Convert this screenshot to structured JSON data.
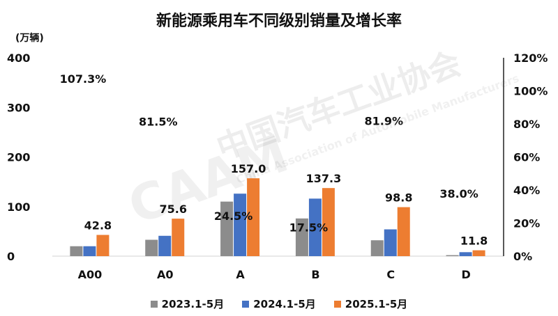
{
  "title": "新能源乘用车不同级别销量及增长率",
  "unit": "(万辆)",
  "watermark": {
    "cn": "中国汽车工业协会",
    "en": "China Association of Automobile Manufacturers",
    "logo": "CAAM"
  },
  "colors": {
    "s2023": "#8c8c8c",
    "s2024": "#4472c4",
    "s2025": "#ed7d31"
  },
  "chart_data": {
    "type": "bar",
    "title": "新能源乘用车不同级别销量及增长率",
    "ylabel": "(万辆)",
    "categories": [
      "A00",
      "A0",
      "A",
      "B",
      "C",
      "D"
    ],
    "series": [
      {
        "name": "2023.1-5月",
        "values": [
          20,
          33,
          110,
          76,
          32,
          2
        ]
      },
      {
        "name": "2024.1-5月",
        "values": [
          20,
          41,
          126,
          116,
          54,
          8
        ]
      },
      {
        "name": "2025.1-5月",
        "values": [
          42.8,
          75.6,
          157.0,
          137.3,
          98.8,
          11.8
        ]
      }
    ],
    "value_labels": [
      "42.8",
      "75.6",
      "157.0",
      "137.3",
      "98.8",
      "11.8"
    ],
    "growth_rate": [
      107.3,
      81.5,
      24.5,
      17.5,
      81.9,
      38.0
    ],
    "growth_labels": [
      "107.3%",
      "81.5%",
      "24.5%",
      "17.5%",
      "81.9%",
      "38.0%"
    ],
    "ylim": [
      0,
      400
    ],
    "yticks": [
      "0",
      "100",
      "200",
      "300",
      "400"
    ],
    "y2lim": [
      0,
      120
    ],
    "y2ticks": [
      "0%",
      "20%",
      "40%",
      "60%",
      "80%",
      "100%",
      "120%"
    ],
    "grid": false,
    "legend_position": "bottom"
  }
}
